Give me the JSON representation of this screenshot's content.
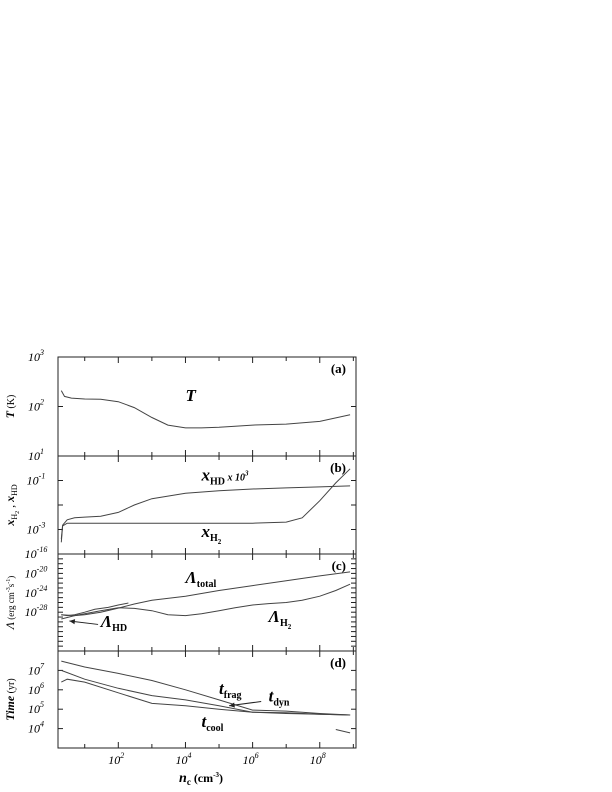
{
  "chart_data": [
    {
      "type": "line",
      "panel_label": "(a)",
      "ylabel": "T (K)",
      "yscale": "log",
      "ylim": [
        10,
        1000
      ],
      "y_ticks": [
        {
          "value": 1000,
          "base": "10",
          "exp": "3"
        },
        {
          "value": 100,
          "base": "10",
          "exp": "2"
        },
        {
          "value": 10,
          "base": "10",
          "exp": "1"
        }
      ],
      "series": [
        {
          "name": "T",
          "x": [
            2,
            2.5,
            4,
            10,
            30,
            100,
            300,
            1000,
            3000,
            10000,
            30000,
            100000,
            300000,
            1000000,
            10000000,
            100000000,
            800000000
          ],
          "values": [
            210,
            160,
            148,
            142,
            140,
            125,
            95,
            60,
            42,
            37,
            37,
            38,
            40,
            42,
            44,
            50,
            68
          ]
        }
      ],
      "labels": [
        {
          "text": "T",
          "x": 10000,
          "y": 130
        }
      ]
    },
    {
      "type": "line",
      "panel_label": "(b)",
      "ylabel": "x_H2 , x_HD",
      "yscale": "log",
      "ylim": [
        0.0001,
        1
      ],
      "y_ticks": [
        {
          "value": 0.1,
          "base": "10",
          "exp": "-1"
        },
        {
          "value": 0.001,
          "base": "10",
          "exp": "-3"
        }
      ],
      "series": [
        {
          "name": "x_HD x 10^3",
          "x": [
            2,
            2.2,
            3,
            5,
            10,
            30,
            100,
            300,
            1000,
            10000,
            100000,
            1000000,
            10000000,
            100000000,
            800000000
          ],
          "values": [
            0.0004,
            0.0015,
            0.0025,
            0.003,
            0.0032,
            0.0035,
            0.005,
            0.01,
            0.018,
            0.03,
            0.038,
            0.045,
            0.05,
            0.055,
            0.06
          ]
        },
        {
          "name": "x_H2",
          "x": [
            2,
            2.2,
            3,
            5,
            10,
            100,
            1000,
            10000,
            100000,
            1000000,
            10000000,
            30000000,
            100000000,
            300000000,
            800000000
          ],
          "values": [
            0.0003,
            0.0014,
            0.0018,
            0.0018,
            0.0018,
            0.0018,
            0.0018,
            0.0018,
            0.0018,
            0.0018,
            0.002,
            0.003,
            0.015,
            0.08,
            0.3
          ]
        }
      ],
      "labels": [
        {
          "main": "x",
          "sub": "HD",
          "suffix": " x 10",
          "sup": "3",
          "x": 30000,
          "y": 0.1
        },
        {
          "main": "x",
          "sub": "H",
          "subsub": "2",
          "x": 30000,
          "y": 0.0005
        }
      ]
    },
    {
      "type": "line",
      "panel_label": "(c)",
      "ylabel": "Λ (erg cm^-3 s^-1)",
      "yscale": "log",
      "ylim": [
        1e-36,
        1e-16
      ],
      "y_ticks": [
        {
          "value": 1e-16,
          "base": "10",
          "exp": "-16"
        },
        {
          "value": 1e-20,
          "base": "10",
          "exp": "-20"
        },
        {
          "value": 1e-24,
          "base": "10",
          "exp": "-24"
        },
        {
          "value": 1e-28,
          "base": "10",
          "exp": "-28"
        }
      ],
      "series": [
        {
          "name": "Λ_total",
          "x": [
            2,
            5,
            10,
            30,
            100,
            300,
            1000,
            10000,
            100000,
            1000000,
            10000000,
            100000000,
            800000000
          ],
          "values": [
            3e-29,
            2e-29,
            3e-29,
            1e-28,
            7e-28,
            5e-27,
            3e-26,
            2e-25,
            3e-24,
            3e-23,
            3e-22,
            3e-21,
            2e-20
          ]
        },
        {
          "name": "Λ_H2",
          "x": [
            2,
            5,
            10,
            30,
            100,
            300,
            1000,
            3000,
            10000,
            30000,
            100000,
            300000,
            1000000,
            3000000,
            10000000,
            30000000,
            100000000,
            300000000,
            800000000
          ],
          "values": [
            4e-30,
            2e-29,
            5e-29,
            2e-28,
            8e-28,
            6e-28,
            2e-28,
            3e-29,
            2e-29,
            5e-29,
            2e-28,
            8e-28,
            3e-27,
            6e-27,
            1e-26,
            3e-26,
            2e-25,
            3e-24,
            6e-23
          ]
        },
        {
          "name": "Λ_HD",
          "x": [
            2,
            3,
            5,
            10,
            20,
            50,
            100,
            200
          ],
          "values": [
            3e-29,
            2e-29,
            3e-29,
            1e-28,
            4e-28,
            1e-27,
            3e-27,
            8e-27
          ]
        }
      ],
      "labels": [
        {
          "main": "Λ",
          "sub": "total",
          "x": 10000,
          "y": 1e-22
        },
        {
          "main": "Λ",
          "sub": "H",
          "subsub": "2",
          "x": 3000000,
          "y": 1e-30
        },
        {
          "main": "Λ",
          "sub": "HD",
          "x": 30,
          "y": 1e-31
        }
      ]
    },
    {
      "type": "line",
      "panel_label": "(d)",
      "ylabel": "Time (yr)",
      "yscale": "log",
      "ylim": [
        1000,
        100000000
      ],
      "y_ticks": [
        {
          "value": 10000000,
          "base": "10",
          "exp": "7"
        },
        {
          "value": 1000000,
          "base": "10",
          "exp": "6"
        },
        {
          "value": 100000,
          "base": "10",
          "exp": "5"
        },
        {
          "value": 10000,
          "base": "10",
          "exp": "4"
        }
      ],
      "series": [
        {
          "name": "t_frag",
          "x": [
            2,
            10,
            100,
            1000,
            10000,
            100000,
            1000000,
            10000000,
            100000000,
            800000000
          ],
          "values": [
            30000000,
            15000000,
            7000000,
            3000000,
            1000000,
            300000,
            90000,
            80000,
            60000,
            50000
          ]
        },
        {
          "name": "t_dyn",
          "x": [
            2,
            10,
            100,
            1000,
            10000,
            100000,
            1000000,
            10000000,
            100000000,
            800000000
          ],
          "values": [
            10000000,
            3500000,
            1200000,
            500000,
            300000,
            150000,
            70000,
            60000,
            55000,
            50000
          ]
        },
        {
          "name": "t_cool",
          "x": [
            2,
            3,
            10,
            100,
            1000,
            10000,
            100000,
            1000000,
            10000000,
            100000000,
            800000000
          ],
          "values": [
            2500000,
            3500000,
            2500000,
            700000,
            200000,
            150000,
            100000,
            70000,
            65000,
            55000,
            50000
          ]
        },
        {
          "name": "t_cool-tail",
          "x": [
            300000000,
            800000000
          ],
          "values": [
            9000,
            6000
          ]
        }
      ],
      "labels": [
        {
          "main": "t",
          "sub": "frag",
          "x": 100000,
          "y": 600000
        },
        {
          "main": "t",
          "sub": "dyn",
          "x": 3000000,
          "y": 250000
        },
        {
          "main": "t",
          "sub": "cool",
          "x": 30000,
          "y": 12000
        }
      ]
    }
  ],
  "xaxis": {
    "label": "n",
    "label_sub": "c",
    "label_units": " (cm",
    "label_sup": "-3",
    "label_close": ")",
    "xscale": "log",
    "xlim": [
      1.6,
      1200000000
    ],
    "ticks": [
      {
        "value": 100,
        "base": "10",
        "exp": "2"
      },
      {
        "value": 10000,
        "base": "10",
        "exp": "4"
      },
      {
        "value": 1000000,
        "base": "10",
        "exp": "6"
      },
      {
        "value": 100000000,
        "base": "10",
        "exp": "8"
      }
    ]
  }
}
